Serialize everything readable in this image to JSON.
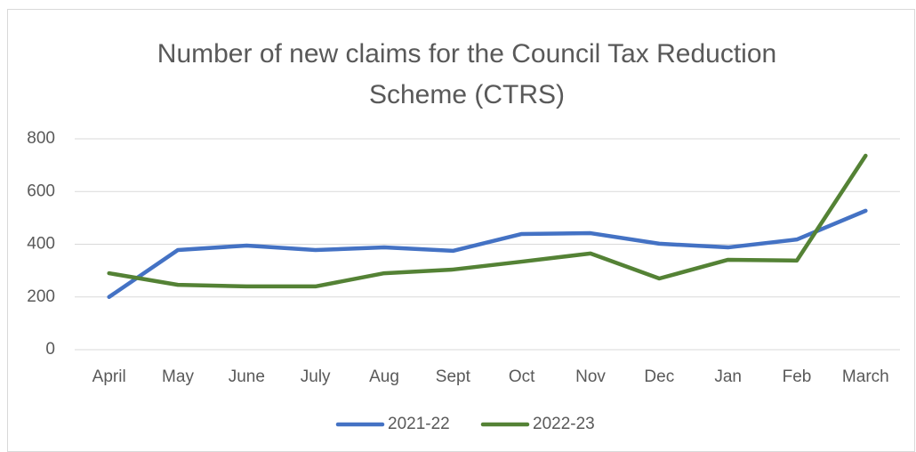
{
  "chart_data": {
    "type": "line",
    "title": "Number of new claims for the Council Tax Reduction Scheme (CTRS)",
    "categories": [
      "April",
      "May",
      "June",
      "July",
      "Aug",
      "Sept",
      "Oct",
      "Nov",
      "Dec",
      "Jan",
      "Feb",
      "March"
    ],
    "series": [
      {
        "name": "2021-22",
        "color": "#4472c4",
        "values": [
          200,
          378,
          395,
          378,
          388,
          375,
          439,
          442,
          402,
          388,
          418,
          527
        ]
      },
      {
        "name": "2022-23",
        "color": "#548235",
        "values": [
          290,
          246,
          240,
          240,
          290,
          304,
          334,
          365,
          270,
          341,
          338,
          736
        ]
      }
    ],
    "ylim": [
      0,
      800
    ],
    "yticks": [
      0,
      200,
      400,
      600,
      800
    ],
    "grid": true,
    "legend": "bottom"
  }
}
